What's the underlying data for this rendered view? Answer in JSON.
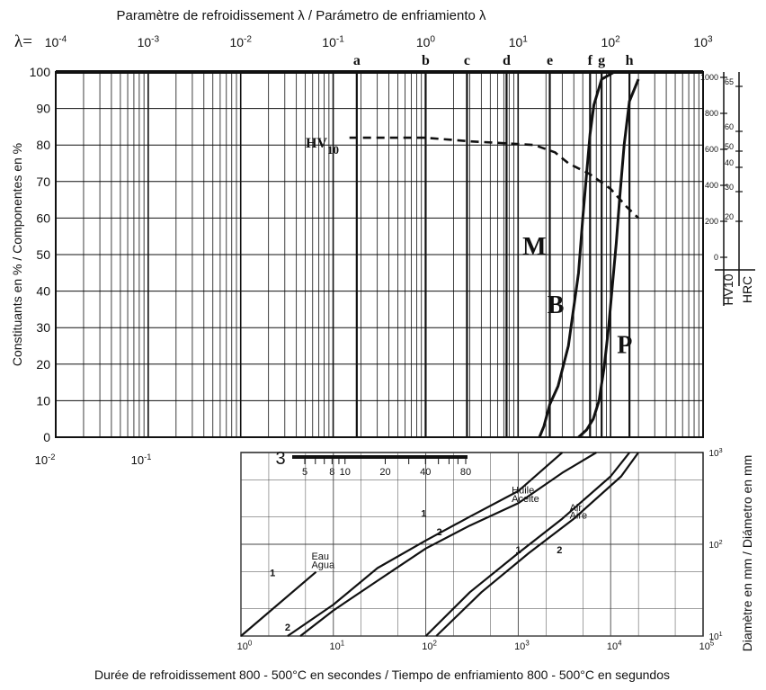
{
  "top_axis": {
    "title": "Paramètre de refroidissement λ / Parámetro de enfriamiento λ",
    "lambda_prefix": "λ=",
    "ticks": [
      {
        "base": "10",
        "exp": "-4",
        "value": 0.0001
      },
      {
        "base": "10",
        "exp": "-3",
        "value": 0.001
      },
      {
        "base": "10",
        "exp": "-2",
        "value": 0.01
      },
      {
        "base": "10",
        "exp": "-1",
        "value": 0.1
      },
      {
        "base": "10",
        "exp": "0",
        "value": 1
      },
      {
        "base": "10",
        "exp": "1",
        "value": 10
      },
      {
        "base": "10",
        "exp": "2",
        "value": 100
      },
      {
        "base": "10",
        "exp": "3",
        "value": 1000
      }
    ]
  },
  "main_chart": {
    "ylabel": "Constituants en % / Componentes en %",
    "ylim": [
      0,
      100
    ],
    "xlim_lambda": [
      0.0001,
      1000
    ],
    "y_ticks": [
      "0",
      "10",
      "20",
      "30",
      "40",
      "50",
      "60",
      "70",
      "80",
      "90",
      "100"
    ],
    "bottom_ticks": [
      {
        "base": "10",
        "exp": "-2",
        "value": 0.01
      },
      {
        "base": "10",
        "exp": "-1",
        "value": 0.1
      }
    ],
    "letter_lines": [
      {
        "label": "a",
        "lambda": 0.18
      },
      {
        "label": "b",
        "lambda": 1.0
      },
      {
        "label": "c",
        "lambda": 2.8
      },
      {
        "label": "d",
        "lambda": 7.5
      },
      {
        "label": "e",
        "lambda": 22
      },
      {
        "label": "f",
        "lambda": 60
      },
      {
        "label": "g",
        "lambda": 80
      },
      {
        "label": "h",
        "lambda": 160
      }
    ],
    "phase_labels": [
      {
        "label": "M",
        "lambda": 15,
        "y": 50
      },
      {
        "label": "B",
        "lambda": 25.5,
        "y": 34
      },
      {
        "label": "P",
        "lambda": 142,
        "y": 23
      }
    ],
    "hv_label": {
      "main": "HV",
      "sub": "10"
    }
  },
  "hardness_scale": {
    "hv10": {
      "label": "HV10",
      "ticks": [
        "0",
        "200",
        "400",
        "600",
        "800",
        "1000"
      ],
      "values": [
        0,
        200,
        400,
        600,
        800,
        1000
      ]
    },
    "hrc": {
      "label": "HRC",
      "ticks": [
        "20",
        "30",
        "40",
        "50",
        "60",
        "65"
      ],
      "values": [
        20,
        30,
        40,
        50,
        60,
        65
      ]
    }
  },
  "chart_data": [
    {
      "type": "line",
      "title": "",
      "xlabel": "Paramètre de refroidissement λ / Parámetro de enfriamiento λ",
      "ylabel": "Constituants en % / Componentes en %",
      "x_scale": "log",
      "xlim": [
        0.0001,
        1000
      ],
      "ylim": [
        0,
        100
      ],
      "grid": true,
      "series": [
        {
          "name": "M",
          "x": [
            17,
            19,
            22,
            27,
            35,
            45,
            50,
            55,
            60,
            66,
            80,
            110
          ],
          "y": [
            0,
            3,
            9,
            14,
            25,
            45,
            60,
            72,
            83,
            91,
            98,
            100
          ]
        },
        {
          "name": "B",
          "x": [
            45,
            55,
            65,
            75,
            85,
            95,
            105,
            115,
            125,
            140,
            160,
            200
          ],
          "y": [
            0,
            2,
            5,
            10,
            19,
            30,
            42,
            53,
            65,
            80,
            92,
            98
          ]
        },
        {
          "name": "HV10",
          "x": [
            0.15,
            0.5,
            1,
            3,
            7,
            15,
            25,
            35,
            60,
            100,
            150,
            200
          ],
          "y": [
            82,
            82,
            82,
            81,
            80.5,
            80,
            78,
            75,
            72,
            68,
            63,
            60
          ]
        }
      ]
    },
    {
      "type": "line",
      "title": "",
      "xlabel": "Durée de refroidissement 800 - 500°C en secondes / Tiempo de enfriamiento 800 - 500°C en segundos",
      "ylabel": "Diamètre en mm / Diámetro en mm",
      "x_scale": "log",
      "y_scale": "log",
      "xlim": [
        1,
        100000
      ],
      "ylim": [
        10,
        1000
      ],
      "grid": true,
      "series": [
        {
          "x": [
            1,
            6.5
          ],
          "y": [
            10,
            50
          ]
        },
        {
          "x": [
            3.2,
            10,
            30,
            100,
            300,
            1000,
            3000
          ],
          "y": [
            10,
            22,
            55,
            110,
            200,
            380,
            1000
          ]
        },
        {
          "x": [
            4.4,
            10,
            30,
            100,
            300,
            1000,
            3000,
            7000
          ],
          "y": [
            10,
            19,
            40,
            90,
            160,
            280,
            600,
            1000
          ]
        },
        {
          "x": [
            100,
            300,
            1000,
            3000,
            10000,
            16000
          ],
          "y": [
            10,
            30,
            80,
            190,
            550,
            1000
          ]
        },
        {
          "x": [
            130,
            400,
            1300,
            4000,
            13000,
            20000
          ],
          "y": [
            10,
            30,
            80,
            190,
            550,
            1000
          ]
        }
      ]
    }
  ],
  "lower_chart": {
    "xlabel": "Durée de refroidissement 800 - 500°C en secondes / Tiempo de enfriamiento 800 - 500°C en segundos",
    "ylabel": "Diamètre en mm / Diámetro en mm",
    "x_ticks": [
      {
        "base": "10",
        "exp": "0",
        "value": 1
      },
      {
        "base": "10",
        "exp": "1",
        "value": 10
      },
      {
        "base": "10",
        "exp": "2",
        "value": 100
      },
      {
        "base": "10",
        "exp": "3",
        "value": 1000
      },
      {
        "base": "10",
        "exp": "4",
        "value": 10000
      },
      {
        "base": "10",
        "exp": "5",
        "value": 100000
      }
    ],
    "y_ticks": [
      {
        "base": "10",
        "exp": "1",
        "value": 10
      },
      {
        "base": "10",
        "exp": "2",
        "value": 100
      },
      {
        "base": "10",
        "exp": "3",
        "value": 1000
      }
    ],
    "ruler": {
      "label": "3",
      "ticks": [
        "5",
        "8",
        "10",
        "20",
        "40",
        "80"
      ],
      "values": [
        5,
        8,
        10,
        20,
        40,
        80
      ]
    },
    "labels": {
      "water": [
        "Eau",
        "Agua"
      ],
      "oil": [
        "Huile",
        "Aceite"
      ],
      "air": [
        "Air",
        "Aire"
      ],
      "curve_numbers": [
        "1",
        "2",
        "1",
        "2",
        "1",
        "2"
      ]
    }
  }
}
